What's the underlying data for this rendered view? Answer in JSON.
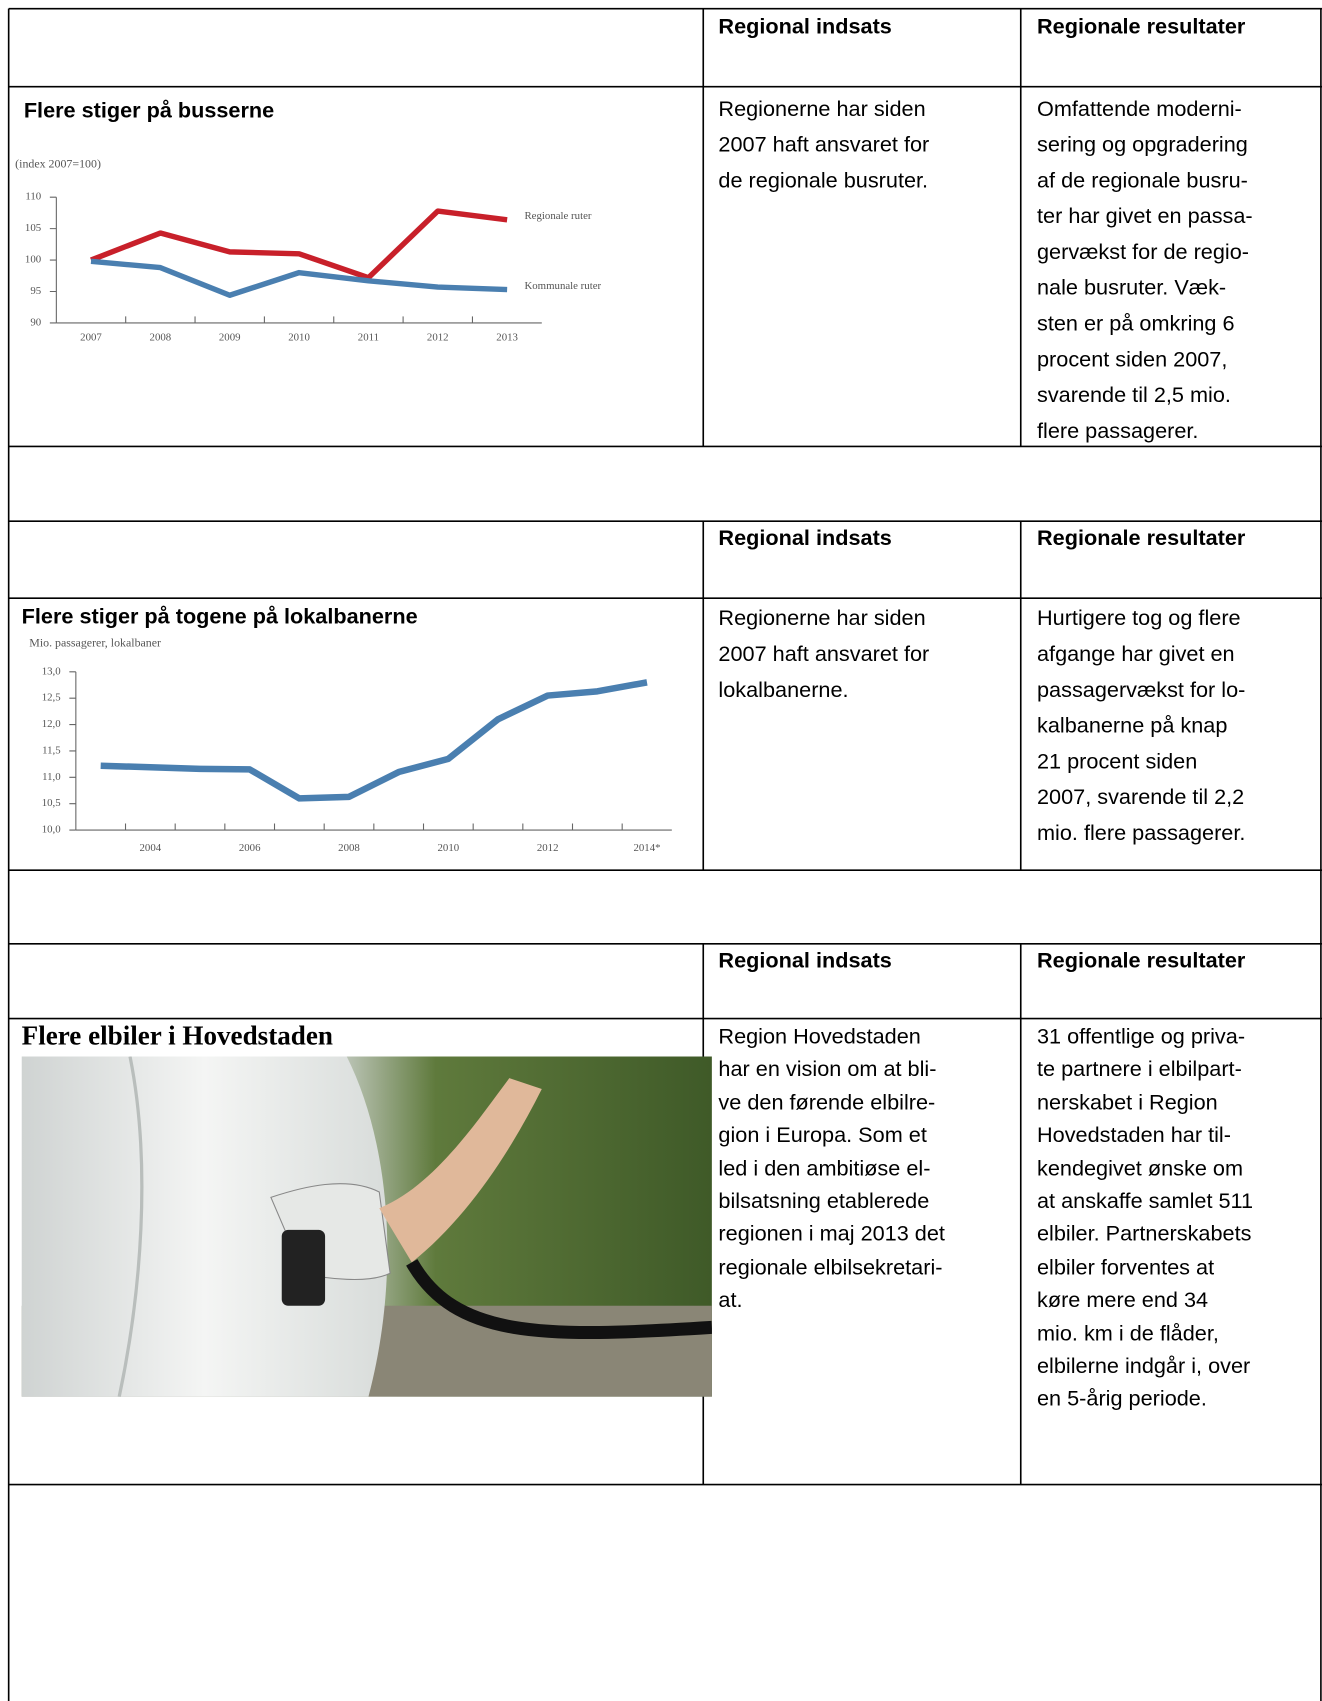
{
  "chart_data": [
    {
      "type": "line",
      "title": "Flere stiger på busserne",
      "subtitle": "(index 2007=100)",
      "categories": [
        "2007",
        "2008",
        "2009",
        "2010",
        "2011",
        "2012",
        "2013"
      ],
      "series": [
        {
          "name": "Regionale ruter",
          "color": "#c8202a",
          "values": [
            100,
            104.3,
            101.3,
            101,
            97.2,
            107.8,
            106.4
          ]
        },
        {
          "name": "Kommunale ruter",
          "color": "#4a7fb0",
          "values": [
            99.8,
            98.8,
            94.4,
            98,
            96.7,
            95.7,
            95.3
          ]
        }
      ],
      "ylim": [
        90,
        110
      ],
      "yticks": [
        90,
        95,
        100,
        105,
        110
      ],
      "legend": "right"
    },
    {
      "type": "line",
      "title": "Flere stiger på togene på lokalbanerne",
      "subtitle": "Mio. passagerer, lokalbaner",
      "categories": [
        null,
        "2004",
        null,
        "2006",
        null,
        "2008",
        null,
        "2010",
        null,
        "2012",
        null,
        "2014*"
      ],
      "values": [
        11.22,
        11.19,
        11.16,
        11.15,
        10.6,
        10.63,
        11.1,
        11.35,
        12.1,
        12.55,
        12.63,
        12.8
      ],
      "color": "#4a7fb0",
      "ylim": [
        10,
        13
      ],
      "yticks": [
        {
          "value": 10,
          "label": "10,0"
        },
        {
          "value": 10.5,
          "label": "10,5"
        },
        {
          "value": 11,
          "label": "11,0"
        },
        {
          "value": 11.5,
          "label": "11,5"
        },
        {
          "value": 12,
          "label": "12,0"
        },
        {
          "value": 12.5,
          "label": "12,5"
        },
        {
          "value": 13,
          "label": "13,0"
        }
      ]
    }
  ],
  "sections": [
    {
      "header_indsats": "Regional indsats",
      "header_resultater": "Regionale resultater",
      "indsats": [
        "Regionerne har siden",
        "2007 haft ansvaret for",
        "de regionale busruter."
      ],
      "resultater": [
        "Omfattende moderni-",
        "sering og opgradering",
        "af de regionale busru-",
        "ter har givet en passa-",
        "gervækst for de regio-",
        "nale busruter. Væk-",
        "sten er på omkring 6",
        "procent siden 2007,",
        "svarende til 2,5 mio.",
        "flere passagerer."
      ]
    },
    {
      "header_indsats": "Regional indsats",
      "header_resultater": "Regionale resultater",
      "indsats": [
        "Regionerne har siden",
        "2007 haft ansvaret for",
        "lokalbanerne."
      ],
      "resultater": [
        "Hurtigere tog og flere",
        "afgange har givet en",
        "passagervækst for lo-",
        "kalbanerne på knap",
        "21 procent siden",
        "2007, svarende til 2,2",
        "mio. flere passagerer."
      ]
    },
    {
      "header_indsats": "Regional indsats",
      "header_resultater": "Regionale resultater",
      "title": "Flere elbiler i Hovedstaden",
      "indsats": [
        "Region Hovedstaden",
        "har en vision om at bli-",
        "ve den førende elbilre-",
        "gion i Europa. Som et",
        "led i den ambitiøse el-",
        "bilsatsning etablerede",
        "regionen i maj 2013 det",
        "regionale elbilsekretari-",
        "at."
      ],
      "resultater": [
        "31 offentlige og priva-",
        "te partnere i elbilpart-",
        "nerskabet i Region",
        "Hovedstaden har til-",
        "kendegivet ønske om",
        "at anskaffe samlet 511",
        "elbiler. Partnerskabets",
        "elbiler forventes at",
        "køre mere end 34",
        "mio. km i de flåder,",
        "elbilerne indgår i, over",
        "en 5-årig periode."
      ]
    }
  ]
}
